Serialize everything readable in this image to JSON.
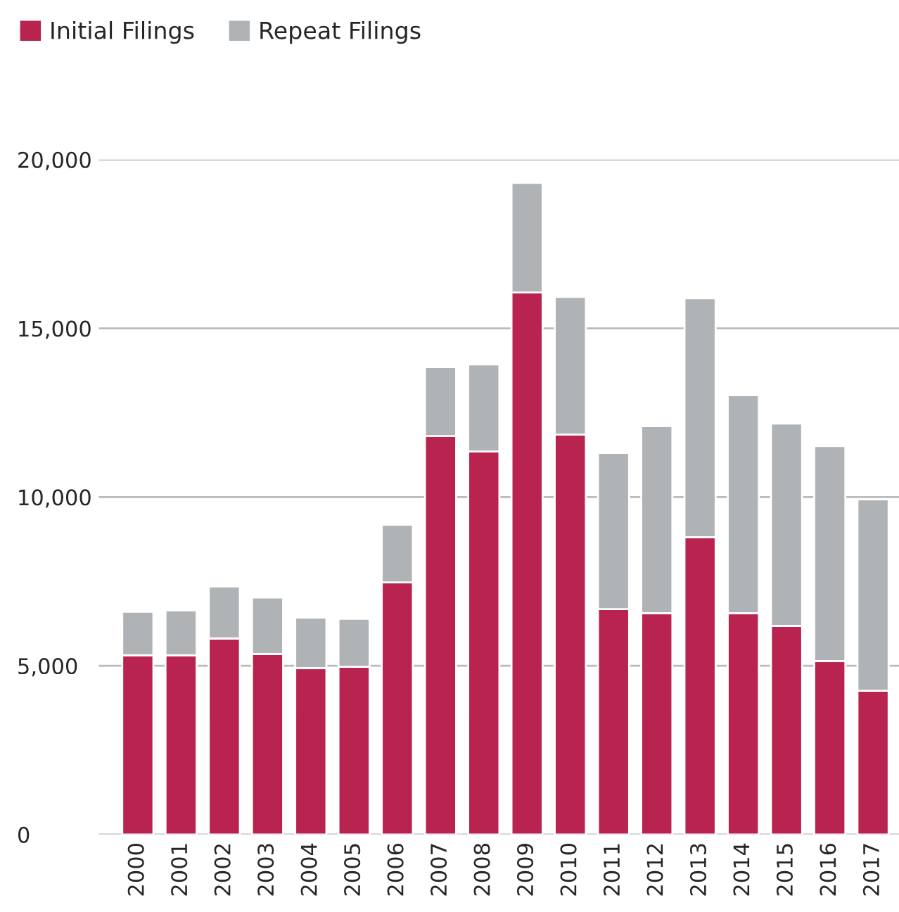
{
  "chart_data": {
    "type": "bar",
    "stacked": true,
    "categories": [
      "2000",
      "2001",
      "2002",
      "2003",
      "2004",
      "2005",
      "2006",
      "2007",
      "2008",
      "2009",
      "2010",
      "2011",
      "2012",
      "2013",
      "2014",
      "2015",
      "2016",
      "2017"
    ],
    "series": [
      {
        "name": "Initial Filings",
        "color": "#b8234f",
        "values": [
          5310,
          5310,
          5810,
          5350,
          4930,
          4970,
          7470,
          11810,
          11350,
          16060,
          11850,
          6680,
          6560,
          8810,
          6560,
          6180,
          5140,
          4260
        ]
      },
      {
        "name": "Repeat Filings",
        "color": "#b0b3b6",
        "values": [
          1290,
          1330,
          1540,
          1670,
          1500,
          1420,
          1710,
          2040,
          2580,
          3250,
          4080,
          4630,
          5540,
          7080,
          6460,
          6000,
          6370,
          5670
        ]
      }
    ],
    "ylim": [
      0,
      20000
    ],
    "yticks": [
      {
        "value": 0,
        "label": "0"
      },
      {
        "value": 5000,
        "label": "5,000"
      },
      {
        "value": 10000,
        "label": "10,000"
      },
      {
        "value": 15000,
        "label": "15,000"
      },
      {
        "value": 20000,
        "label": "20,000"
      }
    ],
    "grid": "y",
    "legend": "top left"
  }
}
